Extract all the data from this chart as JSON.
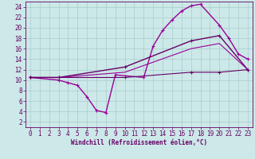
{
  "background_color": "#cce8e8",
  "grid_color": "#aacccc",
  "line_color": "#990099",
  "xlim": [
    -0.5,
    23.5
  ],
  "ylim": [
    1,
    25
  ],
  "xticks": [
    0,
    1,
    2,
    3,
    4,
    5,
    6,
    7,
    8,
    9,
    10,
    11,
    12,
    13,
    14,
    15,
    16,
    17,
    18,
    19,
    20,
    21,
    22,
    23
  ],
  "yticks": [
    2,
    4,
    6,
    8,
    10,
    12,
    14,
    16,
    18,
    20,
    22,
    24
  ],
  "xlabel": "Windchill (Refroidissement éolien,°C)",
  "series": [
    {
      "x": [
        0,
        3,
        4,
        5,
        6,
        7,
        8,
        9,
        12,
        13,
        14,
        15,
        16,
        17,
        18,
        20,
        21,
        22,
        23
      ],
      "y": [
        10.5,
        10.0,
        9.5,
        9.0,
        6.8,
        4.2,
        3.8,
        11.0,
        10.5,
        16.5,
        19.5,
        21.5,
        23.2,
        24.2,
        24.5,
        20.5,
        18.0,
        15.0,
        14.0
      ],
      "color": "#990099",
      "linewidth": 1.0,
      "marker": "+"
    },
    {
      "x": [
        0,
        3,
        10,
        17,
        20,
        23
      ],
      "y": [
        10.5,
        10.5,
        12.5,
        17.5,
        18.5,
        12.0
      ],
      "color": "#660066",
      "linewidth": 1.0,
      "marker": "+"
    },
    {
      "x": [
        0,
        3,
        10,
        17,
        20,
        23
      ],
      "y": [
        10.5,
        10.5,
        11.5,
        16.0,
        17.0,
        12.0
      ],
      "color": "#990099",
      "linewidth": 0.8,
      "marker": null
    },
    {
      "x": [
        0,
        3,
        10,
        17,
        20,
        23
      ],
      "y": [
        10.5,
        10.5,
        10.5,
        11.5,
        11.5,
        12.0
      ],
      "color": "#660066",
      "linewidth": 0.8,
      "marker": "+"
    }
  ],
  "tick_fontsize": 5.5,
  "xlabel_fontsize": 5.5,
  "tick_color": "#660066",
  "spine_color": "#660066"
}
